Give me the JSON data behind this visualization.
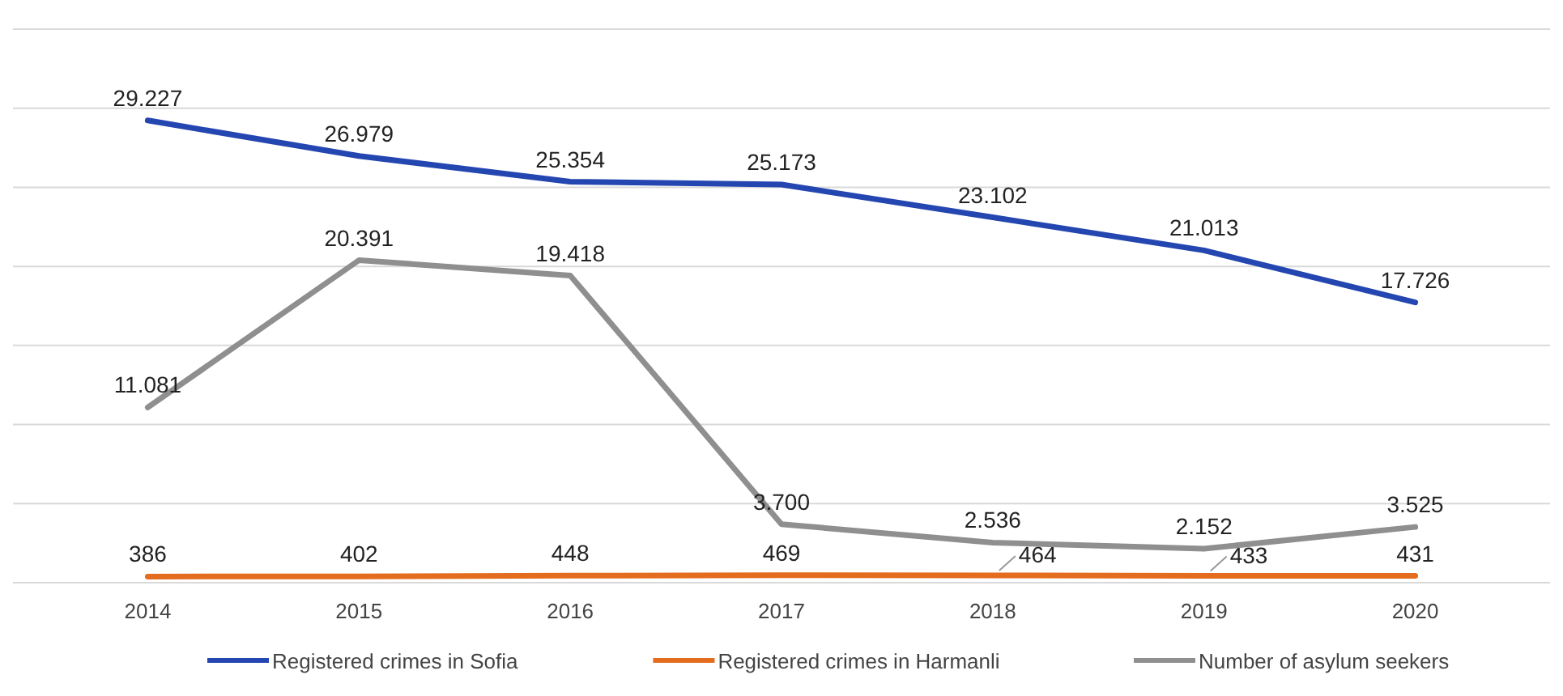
{
  "chart_data": {
    "type": "line",
    "categories": [
      "2014",
      "2015",
      "2016",
      "2017",
      "2018",
      "2019",
      "2020"
    ],
    "series": [
      {
        "name": "Registered crimes in Sofia",
        "color": "#2446b0",
        "values": [
          29227,
          26979,
          25354,
          25173,
          23102,
          21013,
          17726
        ],
        "value_labels": [
          "29.227",
          "26.979",
          "25.354",
          "25.173",
          "23.102",
          "21.013",
          "17.726"
        ]
      },
      {
        "name": "Registered crimes in Harmanli",
        "color": "#e46c1e",
        "values": [
          386,
          402,
          448,
          469,
          464,
          433,
          431
        ],
        "value_labels": [
          "386",
          "402",
          "448",
          "469",
          "464",
          "433",
          "431"
        ]
      },
      {
        "name": "Number of asylum seekers",
        "color": "#8f8f8f",
        "values": [
          11081,
          20391,
          19418,
          3700,
          2536,
          2152,
          3525
        ],
        "value_labels": [
          "11.081",
          "20.391",
          "19.418",
          "3.700",
          "2.536",
          "2.152",
          "3.525"
        ]
      }
    ],
    "ylim": [
      0,
      35000
    ],
    "yticks": [
      {
        "value": 0,
        "label": null
      },
      {
        "value": 5000,
        "label": null
      },
      {
        "value": 10000,
        "label": null
      },
      {
        "value": 15000,
        "label": null
      },
      {
        "value": 20000,
        "label": null
      },
      {
        "value": 25000,
        "label": null
      },
      {
        "value": 30000,
        "label": null
      },
      {
        "value": 35000,
        "label": null
      }
    ],
    "grid": "y",
    "legend": "bottom",
    "tick_labels": "x",
    "marker": "none",
    "line_style": "solid"
  }
}
